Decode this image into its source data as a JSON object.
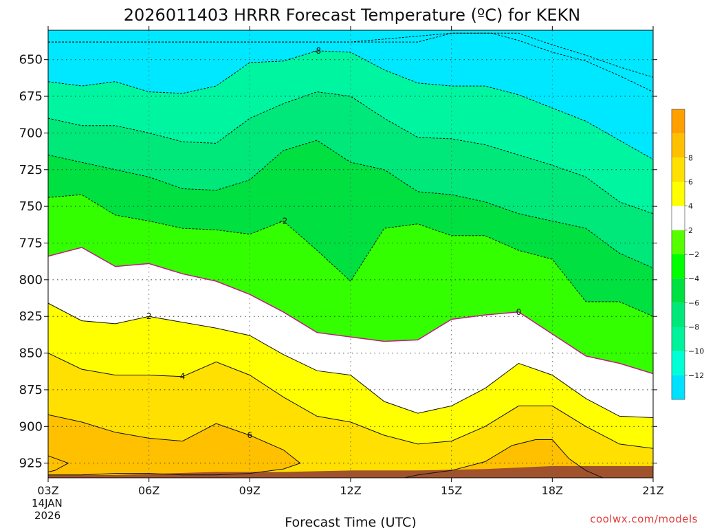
{
  "chart_data": {
    "type": "contour",
    "title": "2026011403 HRRR Forecast Temperature (ºC) for KEKN",
    "xlabel": "Forecast Time (UTC)",
    "ylabel": "",
    "credit": "coolwx.com/models",
    "x_ticks": [
      "03Z",
      "06Z",
      "09Z",
      "12Z",
      "15Z",
      "18Z",
      "21Z"
    ],
    "x_first_date": "14JAN",
    "x_first_year": "2026",
    "x_range": [
      3,
      21
    ],
    "y_ticks": [
      650,
      675,
      700,
      725,
      750,
      775,
      800,
      825,
      850,
      875,
      900,
      925
    ],
    "y_range_hpa": [
      630,
      935
    ],
    "y_inverted": true,
    "grid": "dotted",
    "colorbar": {
      "placement": "right",
      "levels": [
        -14,
        -12,
        -10,
        -8,
        -6,
        -4,
        -2,
        2,
        4,
        6,
        8,
        10
      ],
      "tick_labels": [
        "8",
        "6",
        "4",
        "2",
        "−2",
        "−4",
        "−6",
        "−8",
        "−10",
        "−12"
      ],
      "tick_values": [
        8,
        6,
        4,
        2,
        -2,
        -4,
        -6,
        -8,
        -10,
        -12
      ],
      "colors": [
        "#00e0ff",
        "#00ffd5",
        "#00f29a",
        "#00e87a",
        "#00e040",
        "#00ff00",
        "#55ff00",
        "#ffffff",
        "#ffff00",
        "#ffe000",
        "#ffc000",
        "#ffa000"
      ]
    },
    "fill_colors": {
      "c_m12": "#00e8ff",
      "c_m10": "#00ffcc",
      "c_m8": "#00f5a0",
      "c_m6": "#00e87a",
      "c_m4": "#00e040",
      "c_m2": "#33ff00",
      "c_0": "#ffffff",
      "c_2": "#ffff00",
      "c_4": "#ffe000",
      "c_6": "#ffc000",
      "ground": "#a0522d",
      "zero_line": "#c71585"
    },
    "contours": [
      {
        "value": -12,
        "style": "dashed",
        "label": "",
        "points": [
          [
            3,
            638
          ],
          [
            4,
            638
          ],
          [
            5,
            638
          ],
          [
            6,
            638
          ],
          [
            7,
            638
          ],
          [
            8,
            638
          ],
          [
            9,
            638
          ],
          [
            10,
            638
          ],
          [
            11,
            638
          ],
          [
            12,
            638
          ],
          [
            13,
            638
          ],
          [
            14,
            638
          ],
          [
            15,
            632
          ],
          [
            16,
            632
          ],
          [
            17,
            632
          ],
          [
            18,
            640
          ],
          [
            19,
            647
          ],
          [
            20,
            655
          ],
          [
            21,
            662
          ]
        ]
      },
      {
        "value": -10,
        "style": "dashed",
        "label": "",
        "points": [
          [
            3,
            638
          ],
          [
            12,
            638
          ],
          [
            15,
            632
          ],
          [
            16.2,
            632
          ],
          [
            17,
            637
          ],
          [
            18,
            645
          ],
          [
            19,
            651
          ],
          [
            20,
            661
          ],
          [
            21,
            672
          ]
        ]
      },
      {
        "value": -8,
        "style": "dashed",
        "label": "-8",
        "label_x": 11,
        "points": [
          [
            3,
            665
          ],
          [
            4,
            668
          ],
          [
            5,
            665
          ],
          [
            6,
            672
          ],
          [
            7,
            673
          ],
          [
            8,
            668
          ],
          [
            9,
            652
          ],
          [
            10,
            651
          ],
          [
            11,
            644
          ],
          [
            12,
            645
          ],
          [
            13,
            657
          ],
          [
            14,
            666
          ],
          [
            15,
            668
          ],
          [
            16,
            668
          ],
          [
            17,
            674
          ],
          [
            18,
            683
          ],
          [
            19,
            692
          ],
          [
            20,
            705
          ],
          [
            21,
            718
          ]
        ]
      },
      {
        "value": -6,
        "style": "dashed",
        "label": "",
        "points": [
          [
            3,
            690
          ],
          [
            4,
            695
          ],
          [
            5,
            695
          ],
          [
            6,
            700
          ],
          [
            7,
            706
          ],
          [
            8,
            707
          ],
          [
            9,
            690
          ],
          [
            10,
            680
          ],
          [
            11,
            672
          ],
          [
            12,
            675
          ],
          [
            13,
            690
          ],
          [
            14,
            703
          ],
          [
            15,
            704
          ],
          [
            16,
            708
          ],
          [
            17,
            715
          ],
          [
            18,
            722
          ],
          [
            19,
            730
          ],
          [
            20,
            747
          ],
          [
            21,
            755
          ]
        ]
      },
      {
        "value": -4,
        "style": "dashed",
        "label": "",
        "points": [
          [
            3,
            715
          ],
          [
            4,
            720
          ],
          [
            5,
            725
          ],
          [
            6,
            730
          ],
          [
            7,
            738
          ],
          [
            8,
            739
          ],
          [
            9,
            732
          ],
          [
            10,
            712
          ],
          [
            11,
            705
          ],
          [
            12,
            720
          ],
          [
            13,
            725
          ],
          [
            14,
            740
          ],
          [
            15,
            742
          ],
          [
            16,
            747
          ],
          [
            17,
            755
          ],
          [
            18,
            760
          ],
          [
            19,
            765
          ],
          [
            20,
            782
          ],
          [
            21,
            792
          ]
        ]
      },
      {
        "value": -2,
        "style": "dashed",
        "label": "-2",
        "label_x": 10,
        "points": [
          [
            3,
            744
          ],
          [
            4,
            742
          ],
          [
            5,
            756
          ],
          [
            6,
            760
          ],
          [
            7,
            765
          ],
          [
            8,
            766
          ],
          [
            9,
            769
          ],
          [
            10,
            760
          ],
          [
            11,
            780
          ],
          [
            12,
            801
          ],
          [
            13,
            765
          ],
          [
            14,
            762
          ],
          [
            15,
            770
          ],
          [
            16,
            770
          ],
          [
            17,
            780
          ],
          [
            18,
            786
          ],
          [
            19,
            815
          ],
          [
            20,
            815
          ],
          [
            21,
            825
          ]
        ]
      },
      {
        "value": 0,
        "style": "solid",
        "label": "0",
        "label_x": 17,
        "points": [
          [
            3,
            784
          ],
          [
            4,
            778
          ],
          [
            5,
            791
          ],
          [
            6,
            789
          ],
          [
            7,
            796
          ],
          [
            8,
            801
          ],
          [
            9,
            810
          ],
          [
            10,
            822
          ],
          [
            11,
            836
          ],
          [
            12,
            839
          ],
          [
            13,
            842
          ],
          [
            14,
            841
          ],
          [
            15,
            827
          ],
          [
            16,
            824
          ],
          [
            17,
            822
          ],
          [
            18,
            837
          ],
          [
            19,
            852
          ],
          [
            20,
            857
          ],
          [
            21,
            864
          ]
        ]
      },
      {
        "value": 2,
        "style": "solid",
        "label": "2",
        "label_x": 6,
        "points": [
          [
            3,
            816
          ],
          [
            4,
            828
          ],
          [
            5,
            830
          ],
          [
            6,
            825
          ],
          [
            7,
            829
          ],
          [
            8,
            833
          ],
          [
            9,
            838
          ],
          [
            10,
            851
          ],
          [
            11,
            862
          ],
          [
            12,
            865
          ],
          [
            13,
            883
          ],
          [
            14,
            891
          ],
          [
            15,
            886
          ],
          [
            16,
            874
          ],
          [
            17,
            857
          ],
          [
            18,
            865
          ],
          [
            19,
            881
          ],
          [
            20,
            893
          ],
          [
            21,
            894
          ]
        ]
      },
      {
        "value": 4,
        "style": "solid",
        "label": "4",
        "label_x": 7,
        "points": [
          [
            3,
            850
          ],
          [
            4,
            861
          ],
          [
            5,
            865
          ],
          [
            6,
            865
          ],
          [
            7,
            866
          ],
          [
            8,
            856
          ],
          [
            9,
            865
          ],
          [
            10,
            880
          ],
          [
            11,
            893
          ],
          [
            12,
            897
          ],
          [
            13,
            906
          ],
          [
            14,
            912
          ],
          [
            15,
            910
          ],
          [
            16,
            900
          ],
          [
            17,
            886
          ],
          [
            18,
            886
          ],
          [
            19,
            900
          ],
          [
            20,
            912
          ],
          [
            21,
            915
          ]
        ]
      },
      {
        "value": 6,
        "style": "solid",
        "label": "6",
        "label_x": 9,
        "points": [
          [
            3,
            892
          ],
          [
            4,
            897
          ],
          [
            5,
            904
          ],
          [
            6,
            908
          ],
          [
            7,
            910
          ],
          [
            8,
            898
          ],
          [
            9,
            906
          ],
          [
            10,
            916
          ],
          [
            10.5,
            925
          ],
          [
            10,
            929
          ],
          [
            9,
            932
          ],
          [
            8,
            933
          ],
          [
            7,
            933
          ],
          [
            6,
            932
          ],
          [
            5,
            932
          ],
          [
            4,
            933
          ],
          [
            3,
            933
          ]
        ]
      },
      {
        "value": 6,
        "style": "solid",
        "label": "",
        "points": [
          [
            3,
            920
          ],
          [
            3.6,
            925
          ],
          [
            3.2,
            930
          ],
          [
            3,
            931
          ]
        ]
      },
      {
        "value": 6,
        "style": "solid",
        "label": "",
        "points": [
          [
            13.6,
            935
          ],
          [
            14,
            933
          ],
          [
            15,
            930
          ],
          [
            16,
            924
          ],
          [
            16.8,
            913
          ],
          [
            17.5,
            909
          ],
          [
            18,
            909
          ],
          [
            18.5,
            922
          ],
          [
            19,
            930
          ],
          [
            19.5,
            935
          ]
        ]
      }
    ],
    "ground_profile": [
      [
        3,
        933
      ],
      [
        5,
        933
      ],
      [
        8,
        931
      ],
      [
        10,
        931
      ],
      [
        12,
        930
      ],
      [
        14,
        930
      ],
      [
        16,
        929
      ],
      [
        17,
        928
      ],
      [
        18,
        927
      ],
      [
        19,
        927
      ],
      [
        21,
        927
      ]
    ]
  }
}
